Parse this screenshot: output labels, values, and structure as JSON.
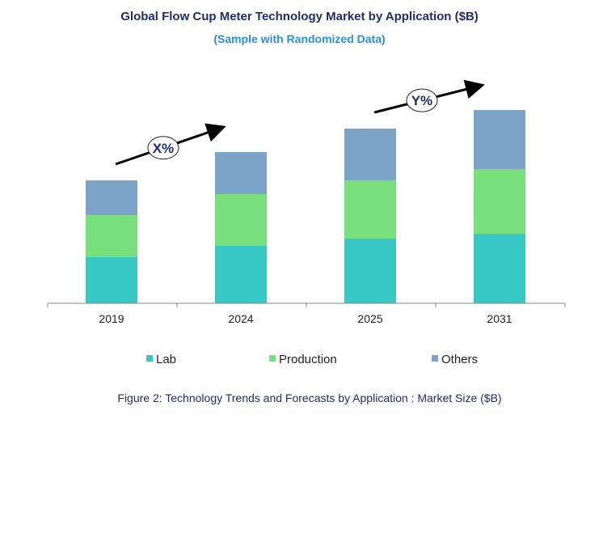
{
  "chart_data": {
    "type": "bar",
    "stacked": true,
    "title": "Global Flow Cup Meter Technology Market by Application ($B)",
    "subtitle": "(Sample with Randomized Data)",
    "caption": "Figure 2: Technology  Trends  and Forecasts by Application : Market Size ($B)",
    "xlabel": "",
    "ylabel": "",
    "ylim": [
      0,
      250
    ],
    "grid": false,
    "legend_position": "bottom",
    "categories": [
      "2019",
      "2024",
      "2025",
      "2031"
    ],
    "series": [
      {
        "name": "Lab",
        "color": "#38c7c4",
        "values": [
          57,
          71,
          80,
          86
        ]
      },
      {
        "name": "Production",
        "color": "#7ae07e",
        "values": [
          52,
          64,
          72,
          80
        ]
      },
      {
        "name": "Others",
        "color": "#7ea3c8",
        "values": [
          43,
          52,
          64,
          73
        ]
      }
    ],
    "annotations": [
      {
        "text": "X%",
        "from": "2019",
        "to": "2024"
      },
      {
        "text": "Y%",
        "from": "2025",
        "to": "2031"
      }
    ]
  }
}
